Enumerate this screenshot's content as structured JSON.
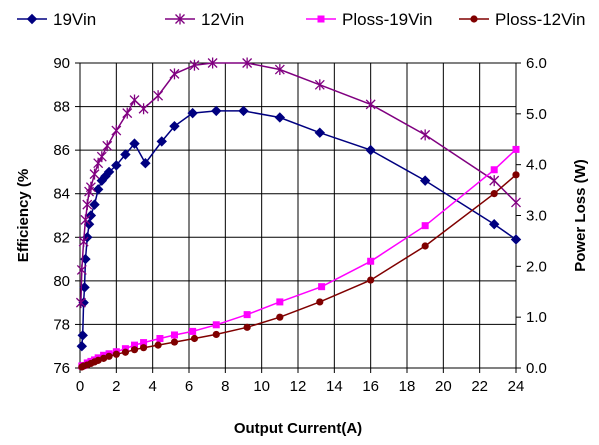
{
  "chart_data": {
    "type": "line",
    "xlabel": "Output Current(A)",
    "ylabel_left": "Efficiency (%",
    "ylabel_right": "Power Loss (W)",
    "xlim": [
      0,
      24
    ],
    "ylim_left": [
      76,
      90
    ],
    "ylim_right": [
      0,
      6
    ],
    "x_ticks": [
      "0",
      "2",
      "4",
      "6",
      "8",
      "10",
      "12",
      "14",
      "16",
      "18",
      "20",
      "22",
      "24"
    ],
    "y_left_ticks": [
      "76",
      "78",
      "80",
      "82",
      "84",
      "86",
      "88",
      "90"
    ],
    "y_right_ticks": [
      "0.0",
      "1.0",
      "2.0",
      "3.0",
      "4.0",
      "5.0",
      "6.0"
    ],
    "grid": true,
    "legend_position": "top",
    "series": [
      {
        "name": "19Vin",
        "axis": "left",
        "color": "#000080",
        "marker": "diamond",
        "points": [
          [
            0.1,
            77.0
          ],
          [
            0.15,
            77.5
          ],
          [
            0.2,
            79.0
          ],
          [
            0.25,
            79.7
          ],
          [
            0.3,
            81.0
          ],
          [
            0.4,
            82.0
          ],
          [
            0.5,
            82.6
          ],
          [
            0.6,
            83.0
          ],
          [
            0.8,
            83.5
          ],
          [
            1.0,
            84.2
          ],
          [
            1.2,
            84.6
          ],
          [
            1.4,
            84.8
          ],
          [
            1.6,
            85.0
          ],
          [
            2.0,
            85.3
          ],
          [
            2.5,
            85.8
          ],
          [
            3.0,
            86.3
          ],
          [
            3.6,
            85.4
          ],
          [
            4.5,
            86.4
          ],
          [
            5.2,
            87.1
          ],
          [
            6.2,
            87.7
          ],
          [
            7.5,
            87.8
          ],
          [
            9.0,
            87.8
          ],
          [
            11.0,
            87.5
          ],
          [
            13.2,
            86.8
          ],
          [
            16.0,
            86.0
          ],
          [
            19.0,
            84.6
          ],
          [
            22.8,
            82.6
          ],
          [
            24.0,
            81.9
          ]
        ]
      },
      {
        "name": "12Vin",
        "axis": "left",
        "color": "#800080",
        "marker": "asterisk",
        "points": [
          [
            0.05,
            79.0
          ],
          [
            0.1,
            80.5
          ],
          [
            0.2,
            81.8
          ],
          [
            0.3,
            82.8
          ],
          [
            0.4,
            83.5
          ],
          [
            0.5,
            84.1
          ],
          [
            0.6,
            84.3
          ],
          [
            0.8,
            84.9
          ],
          [
            1.0,
            85.4
          ],
          [
            1.2,
            85.7
          ],
          [
            1.5,
            86.2
          ],
          [
            2.0,
            86.9
          ],
          [
            2.6,
            87.7
          ],
          [
            3.0,
            88.3
          ],
          [
            3.5,
            87.9
          ],
          [
            4.3,
            88.5
          ],
          [
            5.2,
            89.5
          ],
          [
            6.3,
            89.9
          ],
          [
            7.3,
            90.0
          ],
          [
            9.2,
            90.0
          ],
          [
            11.0,
            89.7
          ],
          [
            13.2,
            89.0
          ],
          [
            16.0,
            88.1
          ],
          [
            19.0,
            86.7
          ],
          [
            22.8,
            84.6
          ],
          [
            24.0,
            83.6
          ]
        ]
      },
      {
        "name": "Ploss-19Vin",
        "axis": "right",
        "color": "#ff00ff",
        "marker": "square",
        "points": [
          [
            0.1,
            0.04
          ],
          [
            0.2,
            0.05
          ],
          [
            0.4,
            0.1
          ],
          [
            0.6,
            0.13
          ],
          [
            0.8,
            0.16
          ],
          [
            1.0,
            0.2
          ],
          [
            1.3,
            0.25
          ],
          [
            1.6,
            0.28
          ],
          [
            2.0,
            0.32
          ],
          [
            2.5,
            0.38
          ],
          [
            3.0,
            0.45
          ],
          [
            3.5,
            0.5
          ],
          [
            4.4,
            0.58
          ],
          [
            5.2,
            0.65
          ],
          [
            6.2,
            0.72
          ],
          [
            7.5,
            0.85
          ],
          [
            9.2,
            1.05
          ],
          [
            11.0,
            1.3
          ],
          [
            13.3,
            1.6
          ],
          [
            16.0,
            2.1
          ],
          [
            19.0,
            2.8
          ],
          [
            22.8,
            3.9
          ],
          [
            24.0,
            4.3
          ]
        ]
      },
      {
        "name": "Ploss-12Vin",
        "axis": "right",
        "color": "#800000",
        "marker": "circle",
        "points": [
          [
            0.1,
            0.02
          ],
          [
            0.2,
            0.04
          ],
          [
            0.4,
            0.06
          ],
          [
            0.6,
            0.09
          ],
          [
            0.8,
            0.12
          ],
          [
            1.0,
            0.15
          ],
          [
            1.3,
            0.19
          ],
          [
            1.6,
            0.23
          ],
          [
            2.0,
            0.27
          ],
          [
            2.5,
            0.31
          ],
          [
            3.0,
            0.36
          ],
          [
            3.5,
            0.4
          ],
          [
            4.3,
            0.45
          ],
          [
            5.2,
            0.51
          ],
          [
            6.3,
            0.58
          ],
          [
            7.5,
            0.66
          ],
          [
            9.2,
            0.8
          ],
          [
            11.0,
            1.0
          ],
          [
            13.2,
            1.3
          ],
          [
            16.0,
            1.73
          ],
          [
            19.0,
            2.4
          ],
          [
            22.8,
            3.43
          ],
          [
            24.0,
            3.8
          ]
        ]
      }
    ]
  }
}
